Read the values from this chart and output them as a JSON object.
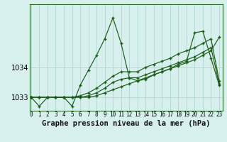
{
  "title": "Graphe pression niveau de la mer (hPa)",
  "bg_color": "#d8f0ed",
  "line_color": "#1a5c1a",
  "grid_color": "#b0d8d2",
  "spine_color": "#2a6a2a",
  "x_ticks": [
    0,
    1,
    2,
    3,
    4,
    5,
    6,
    7,
    8,
    9,
    10,
    11,
    12,
    13,
    14,
    15,
    16,
    17,
    18,
    19,
    20,
    21,
    22,
    23
  ],
  "y_ticks": [
    1033,
    1034
  ],
  "ylim": [
    1032.55,
    1036.1
  ],
  "xlim": [
    -0.2,
    23.4
  ],
  "series": [
    [
      1033.0,
      1032.7,
      1033.0,
      1033.0,
      1033.0,
      1032.7,
      1033.4,
      1033.9,
      1034.4,
      1034.95,
      1035.65,
      1034.8,
      1033.65,
      1033.55,
      1033.6,
      1033.75,
      1033.85,
      1033.95,
      1034.1,
      1034.2,
      1035.15,
      1035.2,
      1034.3,
      1033.4
    ],
    [
      1033.0,
      1033.0,
      1033.0,
      1033.0,
      1033.0,
      1033.0,
      1033.05,
      1033.15,
      1033.3,
      1033.5,
      1033.7,
      1033.85,
      1033.85,
      1033.85,
      1034.0,
      1034.1,
      1034.2,
      1034.3,
      1034.45,
      1034.55,
      1034.65,
      1034.8,
      1034.95,
      1033.55
    ],
    [
      1033.0,
      1033.0,
      1033.0,
      1033.0,
      1033.0,
      1033.0,
      1033.0,
      1033.05,
      1033.15,
      1033.3,
      1033.5,
      1033.6,
      1033.65,
      1033.65,
      1033.75,
      1033.85,
      1033.95,
      1034.05,
      1034.15,
      1034.25,
      1034.35,
      1034.5,
      1034.65,
      1033.45
    ],
    [
      1033.0,
      1033.0,
      1033.0,
      1033.0,
      1033.0,
      1033.0,
      1033.0,
      1033.0,
      1033.05,
      1033.15,
      1033.25,
      1033.35,
      1033.45,
      1033.55,
      1033.65,
      1033.75,
      1033.85,
      1033.95,
      1034.05,
      1034.15,
      1034.25,
      1034.4,
      1034.55,
      1035.0
    ]
  ],
  "marker": "+",
  "markersize": 3.5,
  "markeredgewidth": 1.0,
  "linewidth": 0.85,
  "title_fontsize": 7.5,
  "tick_fontsize": 5.5,
  "ylabel_fontsize": 7.0
}
